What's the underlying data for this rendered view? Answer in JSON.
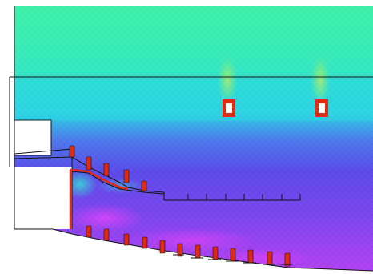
{
  "simulation": {
    "field_colors": {
      "upper_high": "#3cf0a8",
      "upper_mid": "#34e6c4",
      "middle": "#2ad6e0",
      "lower": "#5a48e8",
      "bottom": "#a040f0",
      "hot_spot": "#ff30ff",
      "peak": "#f2f23a"
    },
    "heater_color": "#e02a12",
    "line_color": "#111111",
    "outline_color": "#222222",
    "upper_heater_count": 2,
    "step_heater_count": 6,
    "bottom_heater_count": 15,
    "rack_tick_count": 8
  }
}
